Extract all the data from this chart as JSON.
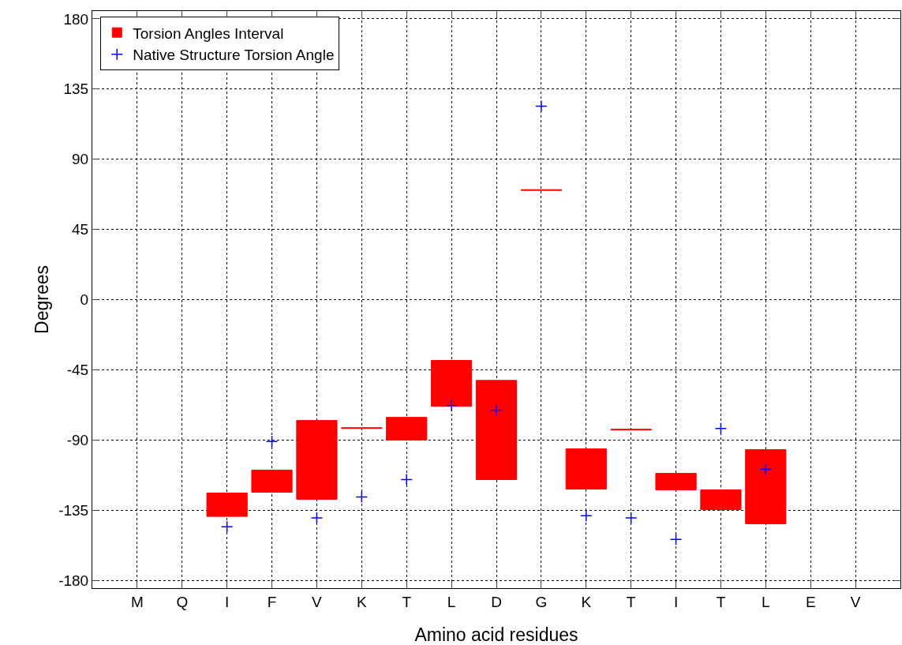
{
  "chart_data": {
    "type": "bar",
    "xlabel": "Amino acid residues",
    "ylabel": "Degrees",
    "categories": [
      "M",
      "Q",
      "I",
      "F",
      "V",
      "K",
      "T",
      "L",
      "D",
      "G",
      "K",
      "T",
      "I",
      "T",
      "L",
      "E",
      "V"
    ],
    "series": [
      {
        "name": "Torsion Angles Interval",
        "color": "#ff0000",
        "base": [
          null,
          null,
          -139,
          -123.5,
          -128,
          -82.6,
          -90,
          -68.4,
          -115.4,
          70,
          -121.5,
          -83.6,
          -122,
          -134.6,
          -143.7,
          null,
          null
        ],
        "values": [
          null,
          null,
          15,
          14.2,
          50.5,
          0.5,
          14.5,
          29.4,
          63.6,
          0.5,
          25.8,
          0.5,
          10.6,
          12.6,
          47.5,
          null,
          null
        ]
      },
      {
        "name": "Native Structure Torsion Angle",
        "type": "scatter",
        "color": "#0000ff",
        "marker": "cross",
        "values": [
          null,
          null,
          -145.7,
          -91,
          -140,
          -126.5,
          -115.4,
          -68,
          -71,
          124,
          -138.6,
          -140,
          -153.8,
          -82.6,
          -108.8,
          null,
          null
        ]
      }
    ],
    "ylim": [
      -185,
      185
    ],
    "yticks": [
      -180,
      -135,
      -90,
      -45,
      0,
      45,
      90,
      135,
      180
    ],
    "grid": true,
    "legend": "top left"
  }
}
